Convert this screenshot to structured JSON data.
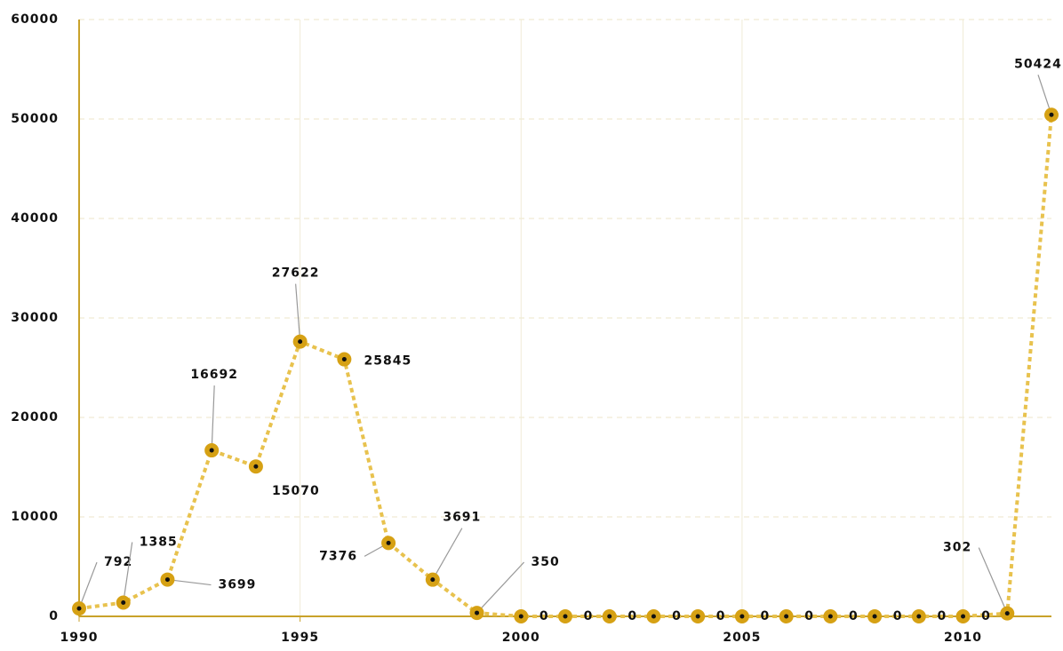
{
  "chart_data": {
    "type": "line",
    "x": [
      1990,
      1991,
      1992,
      1993,
      1994,
      1995,
      1996,
      1997,
      1998,
      1999,
      2000,
      2001,
      2002,
      2003,
      2004,
      2005,
      2006,
      2007,
      2008,
      2009,
      2010,
      2011,
      2012
    ],
    "series": [
      {
        "color": "#e8c24e",
        "marker_color": "#d6a114",
        "values": [
          792,
          1385,
          3699,
          16692,
          15070,
          27622,
          25845,
          7376,
          3691,
          350,
          0,
          0,
          0,
          0,
          0,
          0,
          0,
          0,
          0,
          0,
          0,
          302,
          50424
        ]
      }
    ],
    "xlim": [
      1990,
      2012
    ],
    "xticks": [
      1990,
      1995,
      2000,
      2005,
      2010
    ],
    "ylim": [
      0,
      60000
    ],
    "yticks": [
      0,
      10000,
      20000,
      30000,
      40000,
      50000,
      60000
    ],
    "grid": true
  }
}
